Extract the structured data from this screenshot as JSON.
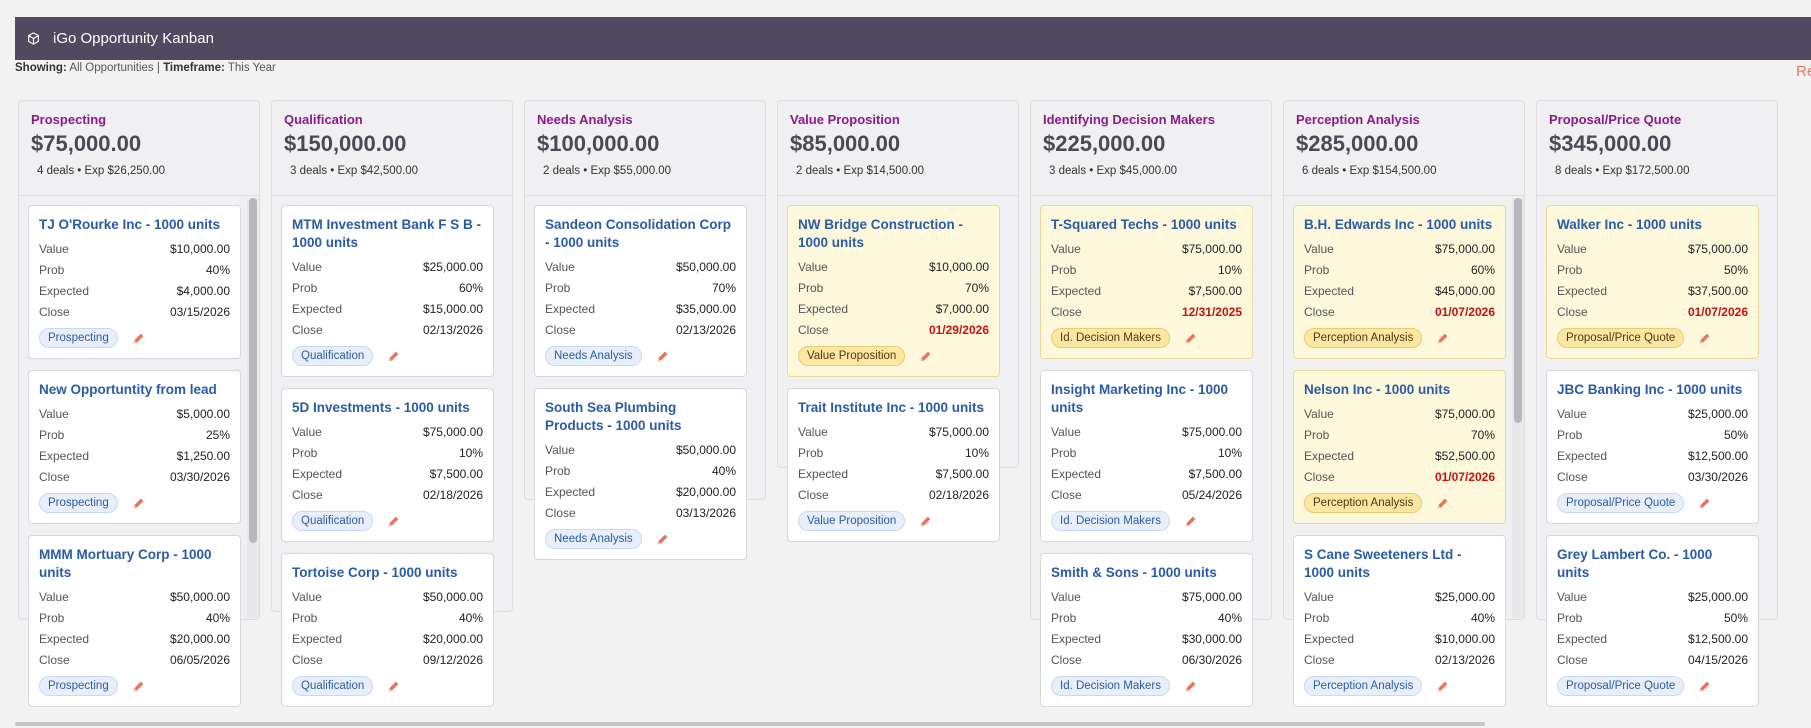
{
  "app": {
    "title": "iGo Opportunity Kanban",
    "logo_icon": "cube-icon"
  },
  "filters": {
    "showing_label": "Showing:",
    "showing_value": "All Opportunities",
    "separator": "|",
    "timeframe_label": "Timeframe:",
    "timeframe_value": "This Year",
    "refresh_label": "Refresh"
  },
  "colors": {
    "header_bg": "#51495f",
    "stage_name": "#8a1a8a",
    "card_title": "#2a5ba5",
    "overdue": "#c41212",
    "highlight_bg": "#fdf8dc",
    "accent": "#e8745e"
  },
  "columns": [
    {
      "name": "Prospecting",
      "total": "$75,000.00",
      "deals": "4 deals",
      "expected": "Exp $26,250.00",
      "scrollbar": true,
      "cards": [
        {
          "title": "TJ O'Rourke Inc - 1000 units",
          "value": "$10,000.00",
          "prob": "40%",
          "expected": "$4,000.00",
          "close": "03/15/2026",
          "stage": "Prospecting",
          "highlight": false,
          "overdue": false
        },
        {
          "title": "New Opportuntity from lead",
          "value": "$5,000.00",
          "prob": "25%",
          "expected": "$1,250.00",
          "close": "03/30/2026",
          "stage": "Prospecting",
          "highlight": false,
          "overdue": false
        },
        {
          "title": "MMM Mortuary Corp - 1000 units",
          "value": "$50,000.00",
          "prob": "40%",
          "expected": "$20,000.00",
          "close": "06/05/2026",
          "stage": "Prospecting",
          "highlight": false,
          "overdue": false
        }
      ]
    },
    {
      "name": "Qualification",
      "total": "$150,000.00",
      "deals": "3 deals",
      "expected": "Exp $42,500.00",
      "scrollbar": false,
      "cards": [
        {
          "title": "MTM Investment Bank F S B - 1000 units",
          "value": "$25,000.00",
          "prob": "60%",
          "expected": "$15,000.00",
          "close": "02/13/2026",
          "stage": "Qualification",
          "highlight": false,
          "overdue": false
        },
        {
          "title": "5D Investments - 1000 units",
          "value": "$75,000.00",
          "prob": "10%",
          "expected": "$7,500.00",
          "close": "02/18/2026",
          "stage": "Qualification",
          "highlight": false,
          "overdue": false
        },
        {
          "title": "Tortoise Corp - 1000 units",
          "value": "$50,000.00",
          "prob": "40%",
          "expected": "$20,000.00",
          "close": "09/12/2026",
          "stage": "Qualification",
          "highlight": false,
          "overdue": false
        }
      ]
    },
    {
      "name": "Needs Analysis",
      "total": "$100,000.00",
      "deals": "2 deals",
      "expected": "Exp $55,000.00",
      "scrollbar": false,
      "cards": [
        {
          "title": "Sandeon Consolidation Corp - 1000 units",
          "value": "$50,000.00",
          "prob": "70%",
          "expected": "$35,000.00",
          "close": "02/13/2026",
          "stage": "Needs Analysis",
          "highlight": false,
          "overdue": false
        },
        {
          "title": "South Sea Plumbing Products - 1000 units",
          "value": "$50,000.00",
          "prob": "40%",
          "expected": "$20,000.00",
          "close": "03/13/2026",
          "stage": "Needs Analysis",
          "highlight": false,
          "overdue": false
        }
      ]
    },
    {
      "name": "Value Proposition",
      "total": "$85,000.00",
      "deals": "2 deals",
      "expected": "Exp $14,500.00",
      "scrollbar": false,
      "cards": [
        {
          "title": "NW Bridge Construction - 1000 units",
          "value": "$10,000.00",
          "prob": "70%",
          "expected": "$7,000.00",
          "close": "01/29/2026",
          "stage": "Value Proposition",
          "highlight": true,
          "overdue": true
        },
        {
          "title": "Trait Institute Inc - 1000 units",
          "value": "$75,000.00",
          "prob": "10%",
          "expected": "$7,500.00",
          "close": "02/18/2026",
          "stage": "Value Proposition",
          "highlight": false,
          "overdue": false
        }
      ]
    },
    {
      "name": "Identifying Decision Makers",
      "total": "$225,000.00",
      "deals": "3 deals",
      "expected": "Exp $45,000.00",
      "scrollbar": false,
      "cards": [
        {
          "title": "T-Squared Techs - 1000 units",
          "value": "$75,000.00",
          "prob": "10%",
          "expected": "$7,500.00",
          "close": "12/31/2025",
          "stage": "Id. Decision Makers",
          "highlight": true,
          "overdue": true
        },
        {
          "title": "Insight Marketing Inc - 1000 units",
          "value": "$75,000.00",
          "prob": "10%",
          "expected": "$7,500.00",
          "close": "05/24/2026",
          "stage": "Id. Decision Makers",
          "highlight": false,
          "overdue": false
        },
        {
          "title": "Smith & Sons - 1000 units",
          "value": "$75,000.00",
          "prob": "40%",
          "expected": "$30,000.00",
          "close": "06/30/2026",
          "stage": "Id. Decision Makers",
          "highlight": false,
          "overdue": false
        }
      ]
    },
    {
      "name": "Perception Analysis",
      "total": "$285,000.00",
      "deals": "6 deals",
      "expected": "Exp $154,500.00",
      "scrollbar": true,
      "cards": [
        {
          "title": "B.H. Edwards Inc - 1000 units",
          "value": "$75,000.00",
          "prob": "60%",
          "expected": "$45,000.00",
          "close": "01/07/2026",
          "stage": "Perception Analysis",
          "highlight": true,
          "overdue": true
        },
        {
          "title": "Nelson Inc - 1000 units",
          "value": "$75,000.00",
          "prob": "70%",
          "expected": "$52,500.00",
          "close": "01/07/2026",
          "stage": "Perception Analysis",
          "highlight": true,
          "overdue": true
        },
        {
          "title": "S Cane Sweeteners Ltd - 1000 units",
          "value": "$25,000.00",
          "prob": "40%",
          "expected": "$10,000.00",
          "close": "02/13/2026",
          "stage": "Perception Analysis",
          "highlight": false,
          "overdue": false
        }
      ]
    },
    {
      "name": "Proposal/Price Quote",
      "total": "$345,000.00",
      "deals": "8 deals",
      "expected": "Exp $172,500.00",
      "scrollbar": false,
      "cards": [
        {
          "title": "Walker Inc - 1000 units",
          "value": "$75,000.00",
          "prob": "50%",
          "expected": "$37,500.00",
          "close": "01/07/2026",
          "stage": "Proposal/Price Quote",
          "highlight": true,
          "overdue": true
        },
        {
          "title": "JBC Banking Inc - 1000 units",
          "value": "$25,000.00",
          "prob": "50%",
          "expected": "$12,500.00",
          "close": "03/30/2026",
          "stage": "Proposal/Price Quote",
          "highlight": false,
          "overdue": false
        },
        {
          "title": "Grey Lambert Co. - 1000 units",
          "value": "$25,000.00",
          "prob": "50%",
          "expected": "$12,500.00",
          "close": "04/15/2026",
          "stage": "Proposal/Price Quote",
          "highlight": false,
          "overdue": false
        }
      ]
    }
  ],
  "labels": {
    "value": "Value",
    "prob": "Prob",
    "expected": "Expected",
    "close": "Close",
    "edit_icon": "pencil-icon"
  }
}
